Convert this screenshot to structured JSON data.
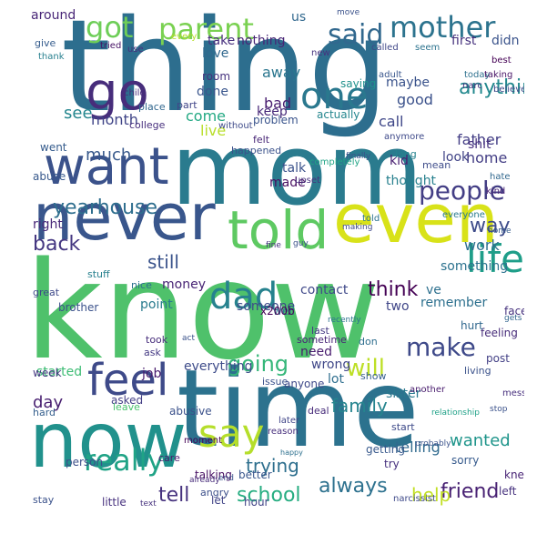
{
  "words": [
    {
      "text": "thing",
      "color": "#2d6e8e"
    },
    {
      "text": "mom",
      "color": "#2a7b8e"
    },
    {
      "text": "know",
      "color": "#4fc16b"
    },
    {
      "text": "time",
      "color": "#2c728e"
    },
    {
      "text": "now",
      "color": "#21918c"
    },
    {
      "text": "never",
      "color": "#39568c"
    },
    {
      "text": "even",
      "color": "#d8e219"
    },
    {
      "text": "want",
      "color": "#3b528b"
    },
    {
      "text": "told",
      "color": "#5ec962"
    },
    {
      "text": "go",
      "color": "#472d7b"
    },
    {
      "text": "feel",
      "color": "#3e4a89"
    },
    {
      "text": "say",
      "color": "#b5de2b"
    },
    {
      "text": "dad",
      "color": "#26828e"
    },
    {
      "text": "life",
      "color": "#1f9e89"
    },
    {
      "text": "one",
      "color": "#2a788e"
    },
    {
      "text": "got",
      "color": "#6ece58"
    },
    {
      "text": "parent",
      "color": "#7ad151"
    },
    {
      "text": "said",
      "color": "#31688e"
    },
    {
      "text": "mother",
      "color": "#2c738e"
    },
    {
      "text": "people",
      "color": "#433e85"
    },
    {
      "text": "really",
      "color": "#20a386"
    },
    {
      "text": "make",
      "color": "#3e4989"
    },
    {
      "text": "will",
      "color": "#bddf26"
    },
    {
      "text": "yearhouse",
      "color": "#2e6e8e"
    },
    {
      "text": "going",
      "color": "#35b779"
    },
    {
      "text": "family",
      "color": "#25848e"
    },
    {
      "text": "school",
      "color": "#26ad81"
    },
    {
      "text": "always",
      "color": "#2d718e"
    },
    {
      "text": "friend",
      "color": "#482173"
    },
    {
      "text": "back",
      "color": "#453781"
    },
    {
      "text": "think",
      "color": "#440154"
    },
    {
      "text": "much",
      "color": "#38598c"
    },
    {
      "text": "day",
      "color": "#481f70"
    },
    {
      "text": "anything",
      "color": "#23898e"
    },
    {
      "text": "way",
      "color": "#3e4c8a"
    },
    {
      "text": "tell",
      "color": "#46327e"
    },
    {
      "text": "help",
      "color": "#c2df23"
    },
    {
      "text": "trying",
      "color": "#2e6f8e"
    },
    {
      "text": "still",
      "color": "#3a538b"
    },
    {
      "text": "wanted",
      "color": "#1f958b"
    },
    {
      "text": "see",
      "color": "#24868e"
    },
    {
      "text": "month",
      "color": "#404588"
    },
    {
      "text": "home",
      "color": "#433d84"
    },
    {
      "text": "work",
      "color": "#2e6f8e"
    },
    {
      "text": "good",
      "color": "#3b518b"
    },
    {
      "text": "away",
      "color": "#2a768e"
    },
    {
      "text": "bad",
      "color": "#481d6f"
    },
    {
      "text": "call",
      "color": "#3f4788"
    },
    {
      "text": "live",
      "color": "#b8de29"
    },
    {
      "text": "father",
      "color": "#433e85"
    },
    {
      "text": "come",
      "color": "#23a983"
    },
    {
      "text": "done",
      "color": "#39558c"
    },
    {
      "text": "maybe",
      "color": "#3a538b"
    },
    {
      "text": "take",
      "color": "#472f7d"
    },
    {
      "text": "keep",
      "color": "#482979"
    },
    {
      "text": "love",
      "color": "#31688e"
    },
    {
      "text": "nothing",
      "color": "#482576"
    },
    {
      "text": "around",
      "color": "#482677"
    },
    {
      "text": "us",
      "color": "#31688e"
    },
    {
      "text": "first",
      "color": "#46327e"
    },
    {
      "text": "didn",
      "color": "#3a538b"
    },
    {
      "text": "room",
      "color": "#46337e"
    },
    {
      "text": "made",
      "color": "#470d60"
    },
    {
      "text": "talk",
      "color": "#3b528b"
    },
    {
      "text": "look",
      "color": "#414487"
    },
    {
      "text": "shit",
      "color": "#46307e"
    },
    {
      "text": "kid",
      "color": "#481f70"
    },
    {
      "text": "money",
      "color": "#482475"
    },
    {
      "text": "contact",
      "color": "#3f4889"
    },
    {
      "text": "thought",
      "color": "#27808e"
    },
    {
      "text": "something",
      "color": "#2c728e"
    },
    {
      "text": "someone",
      "color": "#3e4a89"
    },
    {
      "text": "right",
      "color": "#482878"
    },
    {
      "text": "point",
      "color": "#297b8e"
    },
    {
      "text": "two",
      "color": "#404688"
    },
    {
      "text": "remember",
      "color": "#2d708e"
    },
    {
      "text": "ve",
      "color": "#2d708e"
    },
    {
      "text": "need",
      "color": "#481c6e"
    },
    {
      "text": "wrong",
      "color": "#3f4788"
    },
    {
      "text": "lot",
      "color": "#2e6e8e"
    },
    {
      "text": "job",
      "color": "#481b6d"
    },
    {
      "text": "everything",
      "color": "#3e4c8a"
    },
    {
      "text": "sister",
      "color": "#29798e"
    },
    {
      "text": "started",
      "color": "#3dbc74"
    },
    {
      "text": "telling",
      "color": "#306a8e"
    },
    {
      "text": "week",
      "color": "#453882"
    },
    {
      "text": "getting",
      "color": "#38598c"
    },
    {
      "text": "anyone",
      "color": "#3e4989"
    },
    {
      "text": "try",
      "color": "#46307e"
    },
    {
      "text": "feeling",
      "color": "#472c7a"
    },
    {
      "text": "hurt",
      "color": "#31688e"
    },
    {
      "text": "face",
      "color": "#46327e"
    },
    {
      "text": "post",
      "color": "#423f85"
    },
    {
      "text": "brother",
      "color": "#3b528b"
    },
    {
      "text": "well",
      "color": "#2c728e"
    },
    {
      "text": "person",
      "color": "#3c4f8a"
    },
    {
      "text": "x200b",
      "color": "#440154"
    },
    {
      "text": "actually",
      "color": "#24868e"
    },
    {
      "text": "saying",
      "color": "#21918c"
    },
    {
      "text": "went",
      "color": "#365c8d"
    },
    {
      "text": "problem",
      "color": "#3a548c"
    },
    {
      "text": "abuse",
      "color": "#38598c"
    },
    {
      "text": "asked",
      "color": "#433e85"
    },
    {
      "text": "abusive",
      "color": "#3b518b"
    },
    {
      "text": "hour",
      "color": "#414487"
    },
    {
      "text": "better",
      "color": "#39568c"
    },
    {
      "text": "talking",
      "color": "#471063"
    },
    {
      "text": "little",
      "color": "#46307e"
    },
    {
      "text": "let",
      "color": "#414487"
    },
    {
      "text": "sorry",
      "color": "#375b8d"
    },
    {
      "text": "knew",
      "color": "#482475"
    },
    {
      "text": "left",
      "color": "#46327e"
    },
    {
      "text": "stay",
      "color": "#3b528b"
    },
    {
      "text": "hard",
      "color": "#355f8d"
    },
    {
      "text": "happened",
      "color": "#3b528b"
    },
    {
      "text": "care",
      "color": "#481a6c"
    },
    {
      "text": "start",
      "color": "#3e4a89"
    },
    {
      "text": "took",
      "color": "#472d7b"
    },
    {
      "text": "ask",
      "color": "#443983"
    },
    {
      "text": "leave",
      "color": "#4ac16d"
    },
    {
      "text": "deal",
      "color": "#472c7a"
    },
    {
      "text": "angry",
      "color": "#3c4f8a"
    },
    {
      "text": "show",
      "color": "#355e8d"
    },
    {
      "text": "issue",
      "color": "#3b528b"
    },
    {
      "text": "last",
      "color": "#443983"
    },
    {
      "text": "sometime",
      "color": "#482576"
    },
    {
      "text": "don",
      "color": "#2e6e8e"
    },
    {
      "text": "living",
      "color": "#3b528b"
    },
    {
      "text": "mean",
      "color": "#3e4c8a"
    },
    {
      "text": "long",
      "color": "#26828e"
    },
    {
      "text": "college",
      "color": "#472f7d"
    },
    {
      "text": "felt",
      "color": "#482677"
    },
    {
      "text": "without",
      "color": "#3e4a89"
    },
    {
      "text": "part",
      "color": "#404588"
    },
    {
      "text": "place",
      "color": "#31678e"
    },
    {
      "text": "child",
      "color": "#472d7b"
    },
    {
      "text": "give",
      "color": "#365d8d"
    },
    {
      "text": "thank",
      "color": "#277f8e"
    },
    {
      "text": "use",
      "color": "#472f7d"
    },
    {
      "text": "tried",
      "color": "#471365"
    },
    {
      "text": "every",
      "color": "#b5de2b"
    },
    {
      "text": "new",
      "color": "#46327e"
    },
    {
      "text": "called",
      "color": "#3f4788"
    },
    {
      "text": "seem",
      "color": "#2c738e"
    },
    {
      "text": "adult",
      "color": "#39568c"
    },
    {
      "text": "today",
      "color": "#2d708e"
    },
    {
      "text": "taking",
      "color": "#471365"
    },
    {
      "text": "best",
      "color": "#440154"
    },
    {
      "text": "move",
      "color": "#3b528b"
    },
    {
      "text": "anymore",
      "color": "#3e4989"
    },
    {
      "text": "narc",
      "color": "#46307e"
    },
    {
      "text": "believe",
      "color": "#3e4989"
    },
    {
      "text": "hate",
      "color": "#31688e"
    },
    {
      "text": "kind",
      "color": "#482475"
    },
    {
      "text": "completely",
      "color": "#20a486"
    },
    {
      "text": "upset",
      "color": "#46327e"
    },
    {
      "text": "finally",
      "color": "#3b528b"
    },
    {
      "text": "told",
      "color": "#2c738e"
    },
    {
      "text": "everyone",
      "color": "#297a8e"
    },
    {
      "text": "home",
      "color": "#365c8d"
    },
    {
      "text": "fine",
      "color": "#46327e"
    },
    {
      "text": "guy",
      "color": "#3b528b"
    },
    {
      "text": "making",
      "color": "#3e4989"
    },
    {
      "text": "gets",
      "color": "#32658e"
    },
    {
      "text": "nice",
      "color": "#2d708e"
    },
    {
      "text": "stuff",
      "color": "#27808e"
    },
    {
      "text": "great",
      "color": "#3e4989"
    },
    {
      "text": "moment",
      "color": "#440154"
    },
    {
      "text": "reason",
      "color": "#472f7d"
    },
    {
      "text": "later",
      "color": "#404588"
    },
    {
      "text": "another",
      "color": "#481b6d"
    },
    {
      "text": "message",
      "color": "#472f7d"
    },
    {
      "text": "stop",
      "color": "#3b528b"
    },
    {
      "text": "relationship",
      "color": "#1fa187"
    },
    {
      "text": "probably",
      "color": "#3b528b"
    },
    {
      "text": "happy",
      "color": "#2d708e"
    },
    {
      "text": "already",
      "color": "#472c7a"
    },
    {
      "text": "end",
      "color": "#3b528b"
    },
    {
      "text": "text",
      "color": "#46327e"
    },
    {
      "text": "narcissist",
      "color": "#3e4989"
    },
    {
      "text": "recently",
      "color": "#2c728e"
    },
    {
      "text": "act",
      "color": "#3b528b"
    }
  ]
}
